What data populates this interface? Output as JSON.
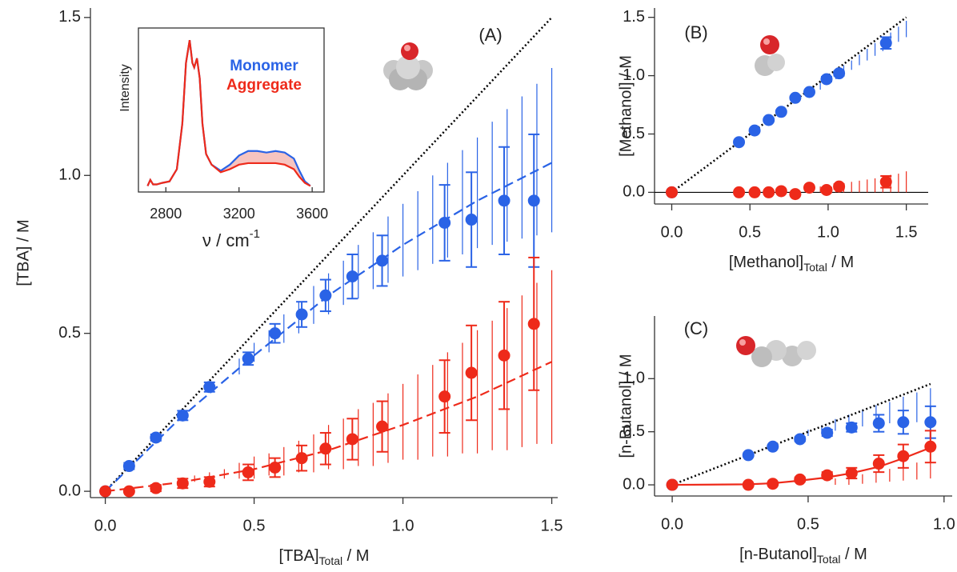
{
  "chart_data": [
    {
      "type": "scatter",
      "annotation": "(A)",
      "xlabel": {
        "text": "[TBA]",
        "sub": "Total",
        "unit": " / M"
      },
      "ylabel": "[TBA] / M",
      "xlim": [
        -0.05,
        1.52
      ],
      "ylim": [
        -0.02,
        1.53
      ],
      "xticks": [
        {
          "value": 0,
          "label": "0.0"
        },
        {
          "value": 0.5,
          "label": "0.5"
        },
        {
          "value": 1,
          "label": "1.0"
        },
        {
          "value": 1.5,
          "label": "1.5"
        }
      ],
      "yticks": [
        {
          "value": 0,
          "label": "0.0"
        },
        {
          "value": 0.5,
          "label": "0.5"
        },
        {
          "value": 1,
          "label": "1.0"
        },
        {
          "value": 1.5,
          "label": "1.5"
        }
      ],
      "series": [
        {
          "style": "hatch",
          "color": "#2a63e6",
          "x": [
            0.45,
            0.5,
            0.55,
            0.6,
            0.65,
            0.7,
            0.75,
            0.8,
            0.85,
            0.9,
            0.95,
            1.0,
            1.05,
            1.1,
            1.15,
            1.2,
            1.25,
            1.3,
            1.35,
            1.4,
            1.45,
            1.5
          ],
          "low": [
            0.37,
            0.41,
            0.44,
            0.47,
            0.5,
            0.53,
            0.56,
            0.59,
            0.61,
            0.64,
            0.66,
            0.68,
            0.7,
            0.72,
            0.74,
            0.75,
            0.77,
            0.78,
            0.79,
            0.8,
            0.81,
            0.82
          ],
          "high": [
            0.42,
            0.47,
            0.51,
            0.56,
            0.6,
            0.65,
            0.69,
            0.73,
            0.78,
            0.82,
            0.87,
            0.91,
            0.95,
            1.0,
            1.04,
            1.08,
            1.12,
            1.17,
            1.21,
            1.25,
            1.29,
            1.34
          ]
        },
        {
          "style": "hatch",
          "color": "#ee2a1a",
          "x": [
            0.3,
            0.35,
            0.4,
            0.45,
            0.5,
            0.55,
            0.6,
            0.65,
            0.7,
            0.75,
            0.8,
            0.85,
            0.9,
            0.95,
            1.0,
            1.05,
            1.1,
            1.15,
            1.2,
            1.25,
            1.3,
            1.35,
            1.4,
            1.45,
            1.5
          ],
          "low": [
            0.03,
            0.03,
            0.04,
            0.04,
            0.04,
            0.05,
            0.05,
            0.06,
            0.06,
            0.07,
            0.07,
            0.08,
            0.08,
            0.09,
            0.1,
            0.1,
            0.11,
            0.11,
            0.12,
            0.12,
            0.13,
            0.13,
            0.14,
            0.15,
            0.15
          ],
          "high": [
            0.05,
            0.06,
            0.07,
            0.09,
            0.11,
            0.12,
            0.14,
            0.16,
            0.18,
            0.21,
            0.23,
            0.26,
            0.28,
            0.31,
            0.34,
            0.37,
            0.4,
            0.44,
            0.47,
            0.51,
            0.54,
            0.58,
            0.62,
            0.66,
            0.7
          ]
        },
        {
          "style": "dotted",
          "color": "#000000",
          "x": [
            0,
            1.5
          ],
          "values": [
            0,
            1.5
          ]
        },
        {
          "style": "dashed",
          "color": "#2a63e6",
          "x": [
            0,
            0.25,
            0.5,
            0.75,
            1,
            1.25,
            1.5
          ],
          "values": [
            0,
            0.23,
            0.43,
            0.62,
            0.78,
            0.92,
            1.04
          ]
        },
        {
          "style": "dashed",
          "color": "#ee2a1a",
          "x": [
            0,
            0.25,
            0.5,
            0.75,
            1,
            1.25,
            1.5
          ],
          "values": [
            0,
            0.028,
            0.07,
            0.13,
            0.21,
            0.3,
            0.41
          ]
        },
        {
          "style": "markers",
          "color": "#2a63e6",
          "x": [
            0,
            0.08,
            0.17,
            0.26,
            0.35,
            0.48,
            0.57,
            0.66,
            0.74,
            0.83,
            0.93,
            1.14,
            1.23,
            1.34,
            1.44
          ],
          "values": [
            0,
            0.08,
            0.17,
            0.24,
            0.33,
            0.42,
            0.5,
            0.56,
            0.62,
            0.68,
            0.73,
            0.85,
            0.86,
            0.92,
            0.92
          ],
          "errors": [
            0,
            0.01,
            0.01,
            0.015,
            0.015,
            0.02,
            0.03,
            0.04,
            0.05,
            0.07,
            0.08,
            0.12,
            0.15,
            0.17,
            0.21
          ]
        },
        {
          "style": "markers",
          "color": "#ee2a1a",
          "x": [
            0,
            0.08,
            0.17,
            0.26,
            0.35,
            0.48,
            0.57,
            0.66,
            0.74,
            0.83,
            0.93,
            1.14,
            1.23,
            1.34,
            1.44
          ],
          "values": [
            0,
            0,
            0.01,
            0.025,
            0.03,
            0.06,
            0.075,
            0.105,
            0.135,
            0.165,
            0.205,
            0.3,
            0.375,
            0.43,
            0.53
          ],
          "errors": [
            0,
            0,
            0.01,
            0.015,
            0.015,
            0.025,
            0.03,
            0.04,
            0.05,
            0.065,
            0.08,
            0.115,
            0.15,
            0.17,
            0.21
          ]
        }
      ]
    },
    {
      "type": "line",
      "xlabel": {
        "text": "ν / cm",
        "sup": "-1"
      },
      "ylabel": "Intensity",
      "xlim": [
        2650,
        3665
      ],
      "ylim": [
        0,
        1.08
      ],
      "xticks": [
        2800,
        3200,
        3600
      ],
      "legend": "upper right",
      "fill_between": "#f6c4c0",
      "x": [
        2700,
        2715,
        2730,
        2750,
        2780,
        2820,
        2860,
        2890,
        2910,
        2930,
        2945,
        2955,
        2970,
        2985,
        3000,
        3020,
        3050,
        3100,
        3150,
        3200,
        3250,
        3300,
        3350,
        3400,
        3450,
        3500,
        3530,
        3560,
        3590
      ],
      "series": [
        {
          "name": "Monomer",
          "color": "#2a63e6",
          "values": [
            0.04,
            0.08,
            0.05,
            0.05,
            0.06,
            0.07,
            0.15,
            0.45,
            0.85,
            1.0,
            0.85,
            0.82,
            0.88,
            0.75,
            0.45,
            0.25,
            0.18,
            0.14,
            0.18,
            0.24,
            0.27,
            0.27,
            0.26,
            0.27,
            0.26,
            0.22,
            0.14,
            0.07,
            0.04
          ]
        },
        {
          "name": "Aggregate",
          "color": "#ee2a1a",
          "values": [
            0.04,
            0.08,
            0.05,
            0.05,
            0.06,
            0.07,
            0.15,
            0.45,
            0.85,
            1.0,
            0.85,
            0.82,
            0.88,
            0.75,
            0.45,
            0.25,
            0.18,
            0.13,
            0.15,
            0.18,
            0.19,
            0.19,
            0.19,
            0.19,
            0.18,
            0.15,
            0.1,
            0.06,
            0.04
          ]
        }
      ]
    },
    {
      "type": "scatter",
      "annotation": "(B)",
      "zero_line": true,
      "xlabel": {
        "text": "[Methanol]",
        "sub": "Total",
        "unit": " / M"
      },
      "ylabel": "[Methanol] / M",
      "xlim": [
        -0.11,
        1.64
      ],
      "ylim": [
        -0.1,
        1.58
      ],
      "xticks": [
        {
          "value": 0,
          "label": "0.0"
        },
        {
          "value": 0.5,
          "label": "0.5"
        },
        {
          "value": 1,
          "label": "1.0"
        },
        {
          "value": 1.5,
          "label": "1.5"
        }
      ],
      "yticks": [
        {
          "value": 0,
          "label": "0.0"
        },
        {
          "value": 0.5,
          "label": "0.5"
        },
        {
          "value": 1,
          "label": "1.0"
        },
        {
          "value": 1.5,
          "label": "1.5"
        }
      ],
      "series": [
        {
          "style": "hatch",
          "color": "#2a63e6",
          "x": [
            0.9,
            0.95,
            1.0,
            1.05,
            1.1,
            1.15,
            1.2,
            1.25,
            1.3,
            1.35,
            1.4,
            1.45,
            1.5
          ],
          "low": [
            0.84,
            0.88,
            0.93,
            0.97,
            1.01,
            1.05,
            1.09,
            1.13,
            1.17,
            1.21,
            1.25,
            1.29,
            1.33
          ],
          "high": [
            0.89,
            0.94,
            0.99,
            1.04,
            1.09,
            1.13,
            1.18,
            1.23,
            1.28,
            1.33,
            1.37,
            1.42,
            1.47
          ]
        },
        {
          "style": "hatch",
          "color": "#ee2a1a",
          "x": [
            0.9,
            0.95,
            1.0,
            1.05,
            1.1,
            1.15,
            1.2,
            1.25,
            1.3,
            1.35,
            1.4,
            1.45,
            1.5
          ],
          "low": [
            0,
            0,
            0,
            0,
            0,
            0,
            0,
            0,
            0,
            0,
            0,
            0,
            0
          ],
          "high": [
            0.04,
            0.05,
            0.06,
            0.07,
            0.08,
            0.09,
            0.1,
            0.11,
            0.12,
            0.14,
            0.15,
            0.16,
            0.18
          ]
        },
        {
          "style": "dotted",
          "color": "#000000",
          "x": [
            0,
            1.5
          ],
          "values": [
            0,
            1.5
          ]
        },
        {
          "style": "markers",
          "color": "#2a63e6",
          "x": [
            0,
            0.43,
            0.53,
            0.62,
            0.7,
            0.79,
            0.88,
            0.99,
            1.07,
            1.37
          ],
          "values": [
            0,
            0.43,
            0.53,
            0.62,
            0.69,
            0.81,
            0.86,
            0.97,
            1.02,
            1.28
          ],
          "errors": [
            0,
            0.01,
            0.01,
            0.01,
            0.01,
            0.01,
            0.01,
            0.02,
            0.02,
            0.05
          ]
        },
        {
          "style": "markers",
          "color": "#ee2a1a",
          "x": [
            0,
            0.43,
            0.53,
            0.62,
            0.7,
            0.79,
            0.88,
            0.99,
            1.07,
            1.37
          ],
          "values": [
            0,
            0,
            0,
            0,
            0.01,
            -0.015,
            0.04,
            0.02,
            0.05,
            0.09
          ],
          "errors": [
            0,
            0.01,
            0.01,
            0.01,
            0.01,
            0.01,
            0.01,
            0.02,
            0.02,
            0.05
          ]
        }
      ]
    },
    {
      "type": "scatter",
      "annotation": "(C)",
      "xlabel": {
        "text": "[n-Butanol]",
        "sub": "Total",
        "unit": " / M"
      },
      "ylabel": "[n-Butanol] / M",
      "xlim": [
        -0.065,
        1.03
      ],
      "ylim": [
        -0.105,
        1.59
      ],
      "xticks": [
        {
          "value": 0,
          "label": "0.0"
        },
        {
          "value": 0.5,
          "label": "0.5"
        },
        {
          "value": 1,
          "label": "1.0"
        }
      ],
      "yticks": [
        {
          "value": 0,
          "label": "0.0"
        },
        {
          "value": 0.5,
          "label": "0.5"
        },
        {
          "value": 1,
          "label": "1.0"
        }
      ],
      "series": [
        {
          "style": "hatch",
          "color": "#2a63e6",
          "x": [
            0.5,
            0.55,
            0.6,
            0.65,
            0.7,
            0.75,
            0.8,
            0.85,
            0.9,
            0.95
          ],
          "low": [
            0.46,
            0.48,
            0.51,
            0.54,
            0.55,
            0.57,
            0.58,
            0.59,
            0.59,
            0.59
          ],
          "high": [
            0.52,
            0.56,
            0.62,
            0.66,
            0.71,
            0.75,
            0.78,
            0.83,
            0.87,
            0.91
          ]
        },
        {
          "style": "hatch",
          "color": "#ee2a1a",
          "x": [
            0.6,
            0.65,
            0.7,
            0.75,
            0.8,
            0.85,
            0.9,
            0.95
          ],
          "low": [
            0,
            0,
            0.01,
            0.02,
            0.03,
            0.04,
            0.05,
            0.06
          ],
          "high": [
            0.06,
            0.08,
            0.1,
            0.12,
            0.15,
            0.18,
            0.21,
            0.24
          ]
        },
        {
          "style": "dotted",
          "color": "#000000",
          "x": [
            0,
            0.95
          ],
          "values": [
            0,
            0.95
          ]
        },
        {
          "style": "solid",
          "color": "#ee2a1a",
          "x": [
            0,
            0.28,
            0.37,
            0.47,
            0.57,
            0.66,
            0.76,
            0.85,
            0.95
          ],
          "values": [
            0,
            0.005,
            0.015,
            0.04,
            0.07,
            0.11,
            0.17,
            0.25,
            0.35
          ]
        },
        {
          "style": "markers",
          "color": "#2a63e6",
          "x": [
            0,
            0.28,
            0.37,
            0.47,
            0.57,
            0.66,
            0.76,
            0.85,
            0.95
          ],
          "values": [
            0,
            0.28,
            0.36,
            0.43,
            0.49,
            0.54,
            0.58,
            0.59,
            0.59
          ],
          "errors": [
            0,
            0.01,
            0.01,
            0.02,
            0.03,
            0.04,
            0.08,
            0.11,
            0.15
          ]
        },
        {
          "style": "markers",
          "color": "#ee2a1a",
          "x": [
            0,
            0.28,
            0.37,
            0.47,
            0.57,
            0.66,
            0.76,
            0.85,
            0.95
          ],
          "values": [
            0,
            0,
            0.01,
            0.05,
            0.09,
            0.11,
            0.2,
            0.27,
            0.36
          ],
          "errors": [
            0,
            0,
            0.01,
            0.02,
            0.03,
            0.05,
            0.08,
            0.11,
            0.15
          ]
        }
      ]
    }
  ]
}
